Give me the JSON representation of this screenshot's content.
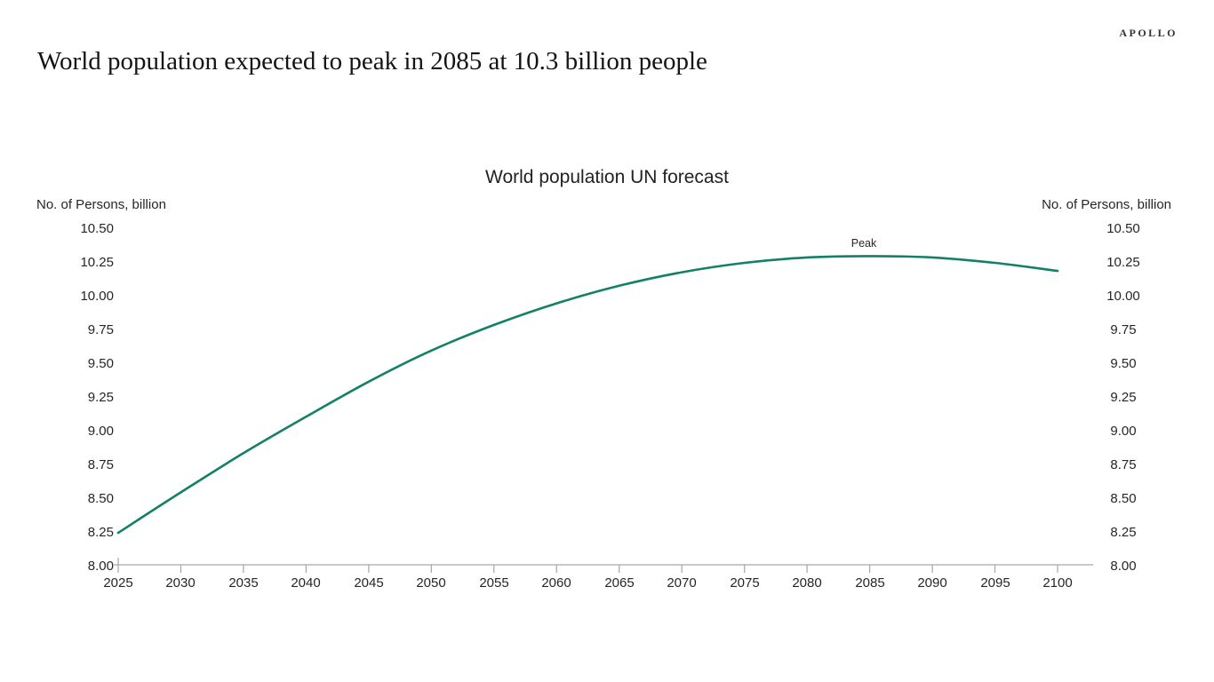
{
  "brand": "APOLLO",
  "headline": "World population expected to peak in 2085 at 10.3 billion people",
  "chart_data": {
    "type": "line",
    "title": "World population UN forecast",
    "ylabel_left": "No. of Persons, billion",
    "ylabel_right": "No. of Persons, billion",
    "x": [
      2025,
      2030,
      2035,
      2040,
      2045,
      2050,
      2055,
      2060,
      2065,
      2070,
      2075,
      2080,
      2085,
      2090,
      2095,
      2100
    ],
    "series": [
      {
        "name": "World population UN forecast",
        "values": [
          8.25,
          8.55,
          8.84,
          9.11,
          9.37,
          9.6,
          9.79,
          9.95,
          10.08,
          10.18,
          10.25,
          10.29,
          10.3,
          10.29,
          10.25,
          10.19
        ]
      }
    ],
    "xlim": [
      2025,
      2100
    ],
    "ylim": [
      8.0,
      10.5
    ],
    "ytick_step": 0.25,
    "ytick_decimals": 2,
    "grid": false,
    "legend": "none",
    "line_color": "#148066",
    "axis_color": "#a6a6a6",
    "annotations": [
      {
        "label": "Peak",
        "x": 2084.5,
        "y": 10.3
      }
    ]
  }
}
